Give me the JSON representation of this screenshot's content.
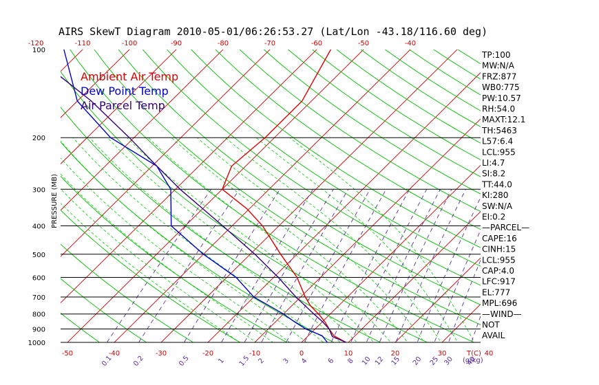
{
  "title": "AIRS SkewT Diagram 2010-05-01/06:26:53.27 (Lat/Lon -43.18/116.60 deg)",
  "colors": {
    "temperature": "#dd0000",
    "dewpoint": "#0000cc",
    "parcel": "#33007a",
    "isotherm": "#cc0000",
    "dry_adiabat": "#00bb00",
    "moist_adiabat": "#00cc00",
    "mixing_ratio": "#5a2d9a",
    "tick_text": "#cc0000",
    "mixing_text": "#5a2d9a",
    "isobar": "#000000"
  },
  "chart_data": {
    "type": "line",
    "chart_kind": "skew-t log-p diagram",
    "title": "AIRS SkewT Diagram 2010-05-01/06:26:53.27 (Lat/Lon -43.18/116.60 deg)",
    "ylabel": "PRESSURE (MB)",
    "y_scale": "log",
    "ylim": [
      1000,
      100
    ],
    "xlim_bottom": [
      -50,
      40
    ],
    "xlim_top": [
      -120,
      -40
    ],
    "pressure_ticks": [
      "100",
      "200",
      "300",
      "400",
      "500",
      "600",
      "700",
      "800",
      "900",
      "1000"
    ],
    "bottom_temp_ticks": [
      "-50",
      "-40",
      "-30",
      "-20",
      "-10",
      "0",
      "10",
      "20",
      "30",
      "40"
    ],
    "top_temp_ticks": [
      "-120",
      "-110",
      "-100",
      "-90",
      "-80",
      "-70",
      "-60",
      "-50",
      "-40"
    ],
    "mixing_ratio_labels": [
      "0.1",
      "0.2",
      "0.5",
      "1",
      "1.5",
      "2",
      "3",
      "4",
      "6",
      "8",
      "10",
      "12",
      "15",
      "20",
      "25",
      "30",
      "40"
    ],
    "bottom_axis_unit": "T(C)",
    "mixing_ratio_unit": "(g/kg)",
    "legend": [
      "Ambient Air Temp",
      "Dew Point Temp",
      "Air Parcel Temp"
    ],
    "series": [
      {
        "name": "Ambient Air Temp",
        "points": [
          [
            1000,
            9.5
          ],
          [
            950,
            5.5
          ],
          [
            900,
            3
          ],
          [
            850,
            0.5
          ],
          [
            800,
            -2.5
          ],
          [
            750,
            -6
          ],
          [
            700,
            -9
          ],
          [
            600,
            -15
          ],
          [
            500,
            -23.5
          ],
          [
            400,
            -33.5
          ],
          [
            350,
            -40.5
          ],
          [
            300,
            -50
          ],
          [
            250,
            -53
          ],
          [
            200,
            -52
          ],
          [
            150,
            -52
          ],
          [
            100,
            -57
          ]
        ]
      },
      {
        "name": "Dew Point Temp",
        "points": [
          [
            1000,
            5.5
          ],
          [
            950,
            3
          ],
          [
            900,
            -2
          ],
          [
            850,
            -6
          ],
          [
            800,
            -10
          ],
          [
            700,
            -20
          ],
          [
            600,
            -28
          ],
          [
            500,
            -40
          ],
          [
            400,
            -53
          ],
          [
            300,
            -61
          ],
          [
            250,
            -69
          ],
          [
            200,
            -85
          ],
          [
            150,
            -100
          ],
          [
            100,
            -114
          ]
        ]
      },
      {
        "name": "Air Parcel Temp",
        "points": [
          [
            1000,
            9.5
          ],
          [
            955,
            5.3
          ],
          [
            900,
            3
          ],
          [
            850,
            0
          ],
          [
            800,
            -3.5
          ],
          [
            700,
            -11
          ],
          [
            600,
            -19
          ],
          [
            500,
            -29
          ],
          [
            400,
            -42
          ],
          [
            300,
            -59
          ],
          [
            250,
            -69
          ],
          [
            200,
            -81
          ],
          [
            150,
            -97
          ],
          [
            100,
            -122
          ]
        ]
      }
    ]
  },
  "indices": [
    "TP:100",
    "MW:N/A",
    "FRZ:877",
    "WB0:775",
    "PW:10.57",
    "RH:54.0",
    "MAXT:12.1",
    "TH:5463",
    "L57:6.4",
    "LCL:955",
    "LI:4.7",
    "SI:8.2",
    "TT:44.0",
    "KI:280",
    "SW:N/A",
    "EI:0.2",
    "—PARCEL—",
    "CAPE:16",
    "CINH:15",
    "LCL:955",
    "CAP:4.0",
    "LFC:917",
    "EL:777",
    "MPL:696",
    "—WIND—",
    "NOT",
    "AVAIL"
  ]
}
